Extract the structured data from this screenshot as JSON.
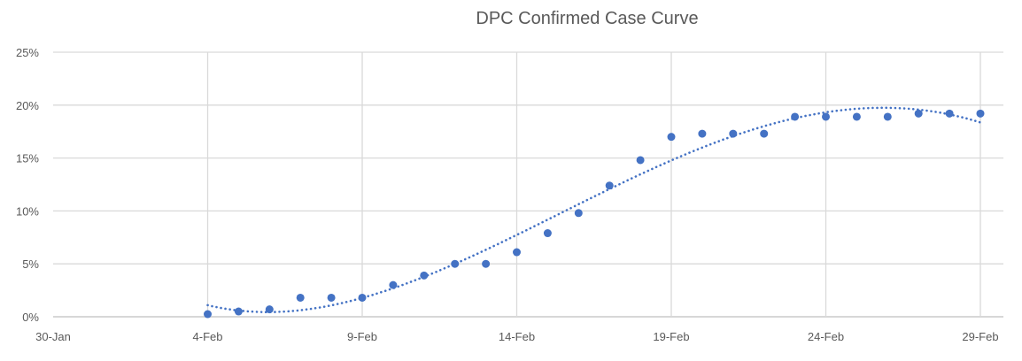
{
  "chart_data": {
    "type": "scatter",
    "title": "DPC Confirmed Case Curve",
    "xlabel": "",
    "ylabel": "",
    "x_ticks": [
      "30-Jan",
      "4-Feb",
      "9-Feb",
      "14-Feb",
      "19-Feb",
      "24-Feb",
      "29-Feb"
    ],
    "y_ticks": [
      "0%",
      "5%",
      "10%",
      "15%",
      "20%",
      "25%"
    ],
    "ylim": [
      0,
      25
    ],
    "xlim": [
      "30-Jan",
      "29-Feb"
    ],
    "grid": true,
    "legend": "none",
    "marker_color": "#4472C4",
    "trendline": {
      "type": "polynomial",
      "style": "dotted",
      "color": "#4472C4"
    },
    "points": [
      {
        "x": "4-Feb",
        "y": 0.25
      },
      {
        "x": "5-Feb",
        "y": 0.5
      },
      {
        "x": "6-Feb",
        "y": 0.7
      },
      {
        "x": "7-Feb",
        "y": 1.8
      },
      {
        "x": "8-Feb",
        "y": 1.8
      },
      {
        "x": "9-Feb",
        "y": 1.8
      },
      {
        "x": "10-Feb",
        "y": 3.0
      },
      {
        "x": "11-Feb",
        "y": 3.9
      },
      {
        "x": "12-Feb",
        "y": 5.0
      },
      {
        "x": "13-Feb",
        "y": 5.0
      },
      {
        "x": "14-Feb",
        "y": 6.1
      },
      {
        "x": "15-Feb",
        "y": 7.9
      },
      {
        "x": "16-Feb",
        "y": 9.8
      },
      {
        "x": "17-Feb",
        "y": 12.4
      },
      {
        "x": "18-Feb",
        "y": 14.8
      },
      {
        "x": "19-Feb",
        "y": 17.0
      },
      {
        "x": "20-Feb",
        "y": 17.3
      },
      {
        "x": "21-Feb",
        "y": 17.3
      },
      {
        "x": "22-Feb",
        "y": 17.3
      },
      {
        "x": "23-Feb",
        "y": 18.9
      },
      {
        "x": "24-Feb",
        "y": 18.9
      },
      {
        "x": "25-Feb",
        "y": 18.9
      },
      {
        "x": "26-Feb",
        "y": 18.9
      },
      {
        "x": "27-Feb",
        "y": 19.2
      },
      {
        "x": "28-Feb",
        "y": 19.2
      },
      {
        "x": "29-Feb",
        "y": 19.2
      }
    ]
  }
}
